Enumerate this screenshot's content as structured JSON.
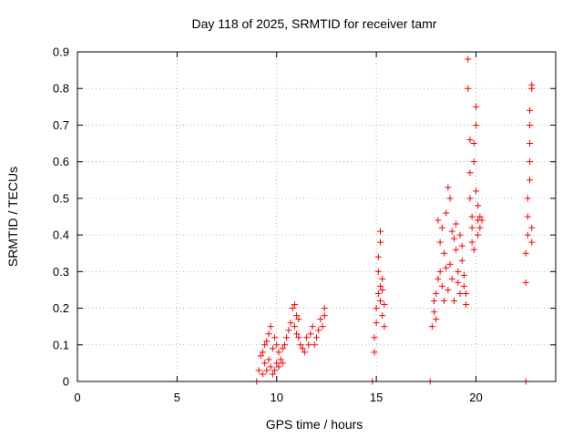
{
  "chart_data": {
    "type": "scatter",
    "title": "Day 118 of 2025, SRMTID for receiver tamr",
    "xlabel": "GPS time / hours",
    "ylabel": "SRMTID / TECUs",
    "xlim": [
      0,
      24
    ],
    "ylim": [
      0,
      0.9
    ],
    "xticks": [
      0,
      5,
      10,
      15,
      20
    ],
    "xtick_labels": [
      "0",
      "5",
      "10",
      "15",
      "20"
    ],
    "yticks": [
      0,
      0.1,
      0.2,
      0.3,
      0.4,
      0.5,
      0.6,
      0.7,
      0.8,
      0.9
    ],
    "ytick_labels": [
      "0",
      "0.1",
      "0.2",
      "0.3",
      "0.4",
      "0.5",
      "0.6",
      "0.7",
      "0.8",
      "0.9"
    ],
    "grid": true,
    "marker": "+",
    "marker_color": "#ff0000",
    "series": [
      {
        "name": "SRMTID",
        "x": [
          9.1,
          9.2,
          9.3,
          9.3,
          9.4,
          9.4,
          9.5,
          9.5,
          9.6,
          9.6,
          9.7,
          9.7,
          9.8,
          9.8,
          9.9,
          9.9,
          10.0,
          10.0,
          10.1,
          10.1,
          10.2,
          10.3,
          10.3,
          10.4,
          10.5,
          10.6,
          10.7,
          10.8,
          10.9,
          10.9,
          11.0,
          11.0,
          11.1,
          11.1,
          11.2,
          11.3,
          11.4,
          11.5,
          11.6,
          11.7,
          11.8,
          11.9,
          12.0,
          12.1,
          12.2,
          12.3,
          12.4,
          12.4,
          14.9,
          14.9,
          15.0,
          15.0,
          15.1,
          15.1,
          15.1,
          15.2,
          15.2,
          15.2,
          15.2,
          15.3,
          15.3,
          15.3,
          15.4,
          15.4,
          17.8,
          17.9,
          17.9,
          18.0,
          18.0,
          18.1,
          18.1,
          18.2,
          18.2,
          18.3,
          18.3,
          18.4,
          18.4,
          18.5,
          18.5,
          18.6,
          18.6,
          18.7,
          18.7,
          18.8,
          18.8,
          18.9,
          18.9,
          19.0,
          19.0,
          19.1,
          19.1,
          19.2,
          19.2,
          19.3,
          19.3,
          19.4,
          19.4,
          19.5,
          19.5,
          19.6,
          19.6,
          19.7,
          19.7,
          19.7,
          19.8,
          19.8,
          19.8,
          19.9,
          19.9,
          19.9,
          20.0,
          20.0,
          20.0,
          20.1,
          20.1,
          20.1,
          20.2,
          20.2,
          20.3,
          22.5,
          22.5,
          22.6,
          22.6,
          22.6,
          22.7,
          22.7,
          22.7,
          22.7,
          22.7,
          22.8,
          22.8,
          22.8,
          22.8,
          9.0,
          14.8,
          17.7,
          22.5
        ],
        "y": [
          0.03,
          0.07,
          0.02,
          0.08,
          0.05,
          0.1,
          0.03,
          0.11,
          0.06,
          0.13,
          0.04,
          0.15,
          0.02,
          0.09,
          0.03,
          0.12,
          0.05,
          0.1,
          0.04,
          0.08,
          0.06,
          0.09,
          0.05,
          0.1,
          0.12,
          0.14,
          0.16,
          0.2,
          0.21,
          0.15,
          0.13,
          0.18,
          0.17,
          0.12,
          0.1,
          0.09,
          0.08,
          0.12,
          0.1,
          0.13,
          0.15,
          0.1,
          0.12,
          0.14,
          0.17,
          0.15,
          0.2,
          0.18,
          0.08,
          0.12,
          0.16,
          0.2,
          0.24,
          0.3,
          0.34,
          0.38,
          0.41,
          0.22,
          0.26,
          0.18,
          0.28,
          0.25,
          0.21,
          0.15,
          0.15,
          0.19,
          0.22,
          0.17,
          0.24,
          0.28,
          0.44,
          0.38,
          0.3,
          0.26,
          0.42,
          0.35,
          0.22,
          0.31,
          0.46,
          0.25,
          0.53,
          0.5,
          0.32,
          0.41,
          0.28,
          0.39,
          0.22,
          0.36,
          0.43,
          0.3,
          0.27,
          0.4,
          0.24,
          0.33,
          0.37,
          0.29,
          0.26,
          0.21,
          0.24,
          0.88,
          0.8,
          0.66,
          0.57,
          0.5,
          0.45,
          0.42,
          0.38,
          0.36,
          0.6,
          0.65,
          0.7,
          0.75,
          0.52,
          0.44,
          0.48,
          0.4,
          0.45,
          0.42,
          0.44,
          0.27,
          0.35,
          0.4,
          0.45,
          0.5,
          0.55,
          0.6,
          0.65,
          0.7,
          0.74,
          0.81,
          0.8,
          0.38,
          0.42,
          0.0,
          0.0,
          0.0,
          0.0
        ]
      }
    ]
  }
}
